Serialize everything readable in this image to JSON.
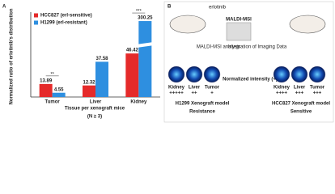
{
  "chart_data": {
    "type": "bar",
    "panel_label": "A",
    "y_label": "Normalized ratio of erlotinib's distribution",
    "x_label": "Tissue per xenograft mice",
    "x_note": "(N ≥ 3)",
    "categories": [
      "Tumor",
      "Liver",
      "Kidney"
    ],
    "series": [
      {
        "name": "HCC827 (erl-sensitive)",
        "color": "#e52a2a",
        "values": [
          13.89,
          12.32,
          46.42
        ]
      },
      {
        "name": "H1299 (erl-resistant)",
        "color": "#2e8fe0",
        "values": [
          4.55,
          37.58,
          300.25
        ]
      }
    ],
    "significance": [
      "**",
      null,
      "***"
    ],
    "ylim": [
      0,
      310
    ],
    "ybreak": [
      50,
      280
    ],
    "legend": "upper-left"
  },
  "panel_b": {
    "label": "B",
    "drug": "erlotinib",
    "method": "MALDI-MSI",
    "steps": [
      "MALDI-MSI analysis",
      "Integration of Imaging Data"
    ],
    "center": "Normalized intensity (+)",
    "left": {
      "organs": [
        "Kidney",
        "Liver",
        "Tumor"
      ],
      "scores": [
        "+++++",
        "++",
        "+"
      ],
      "model": "H1299 Xenograft model",
      "outcome": "Resistance"
    },
    "right": {
      "organs": [
        "Kidney",
        "Liver",
        "Tumor"
      ],
      "scores": [
        "++++",
        "+++",
        "+++"
      ],
      "model": "HCC827 Xenograft model",
      "outcome": "Sensitive"
    }
  }
}
